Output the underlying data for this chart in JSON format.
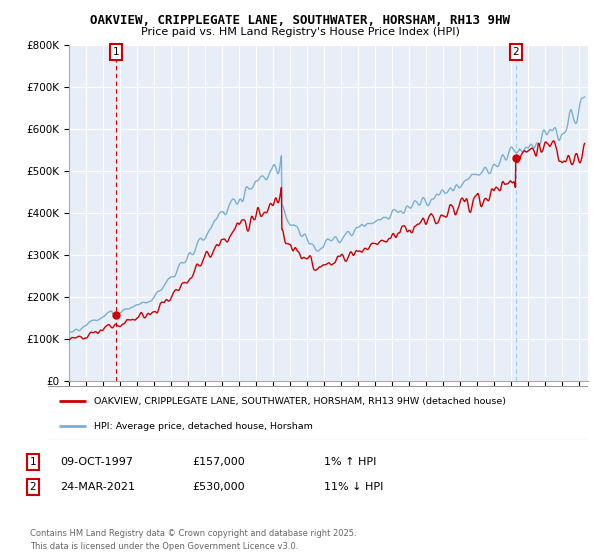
{
  "title_line1": "OAKVIEW, CRIPPLEGATE LANE, SOUTHWATER, HORSHAM, RH13 9HW",
  "title_line2": "Price paid vs. HM Land Registry's House Price Index (HPI)",
  "ylim": [
    0,
    800000
  ],
  "yticks": [
    0,
    100000,
    200000,
    300000,
    400000,
    500000,
    600000,
    700000,
    800000
  ],
  "ytick_labels": [
    "£0",
    "£100K",
    "£200K",
    "£300K",
    "£400K",
    "£500K",
    "£600K",
    "£700K",
    "£800K"
  ],
  "xlim": [
    1995,
    2025.5
  ],
  "background_color": "#ffffff",
  "plot_bg_color": "#e8eef7",
  "grid_color": "#ffffff",
  "sale1_year": 1997.75,
  "sale1_price": 157000,
  "sale2_year": 2021.25,
  "sale2_price": 530000,
  "legend_label1": "OAKVIEW, CRIPPLEGATE LANE, SOUTHWATER, HORSHAM, RH13 9HW (detached house)",
  "legend_label2": "HPI: Average price, detached house, Horsham",
  "footnote": "Contains HM Land Registry data © Crown copyright and database right 2025.\nThis data is licensed under the Open Government Licence v3.0.",
  "line_color_red": "#cc0000",
  "line_color_blue": "#7aafd4",
  "dot_color": "#cc0000",
  "dash1_color": "#cc0000",
  "dash2_color": "#7aafd4"
}
